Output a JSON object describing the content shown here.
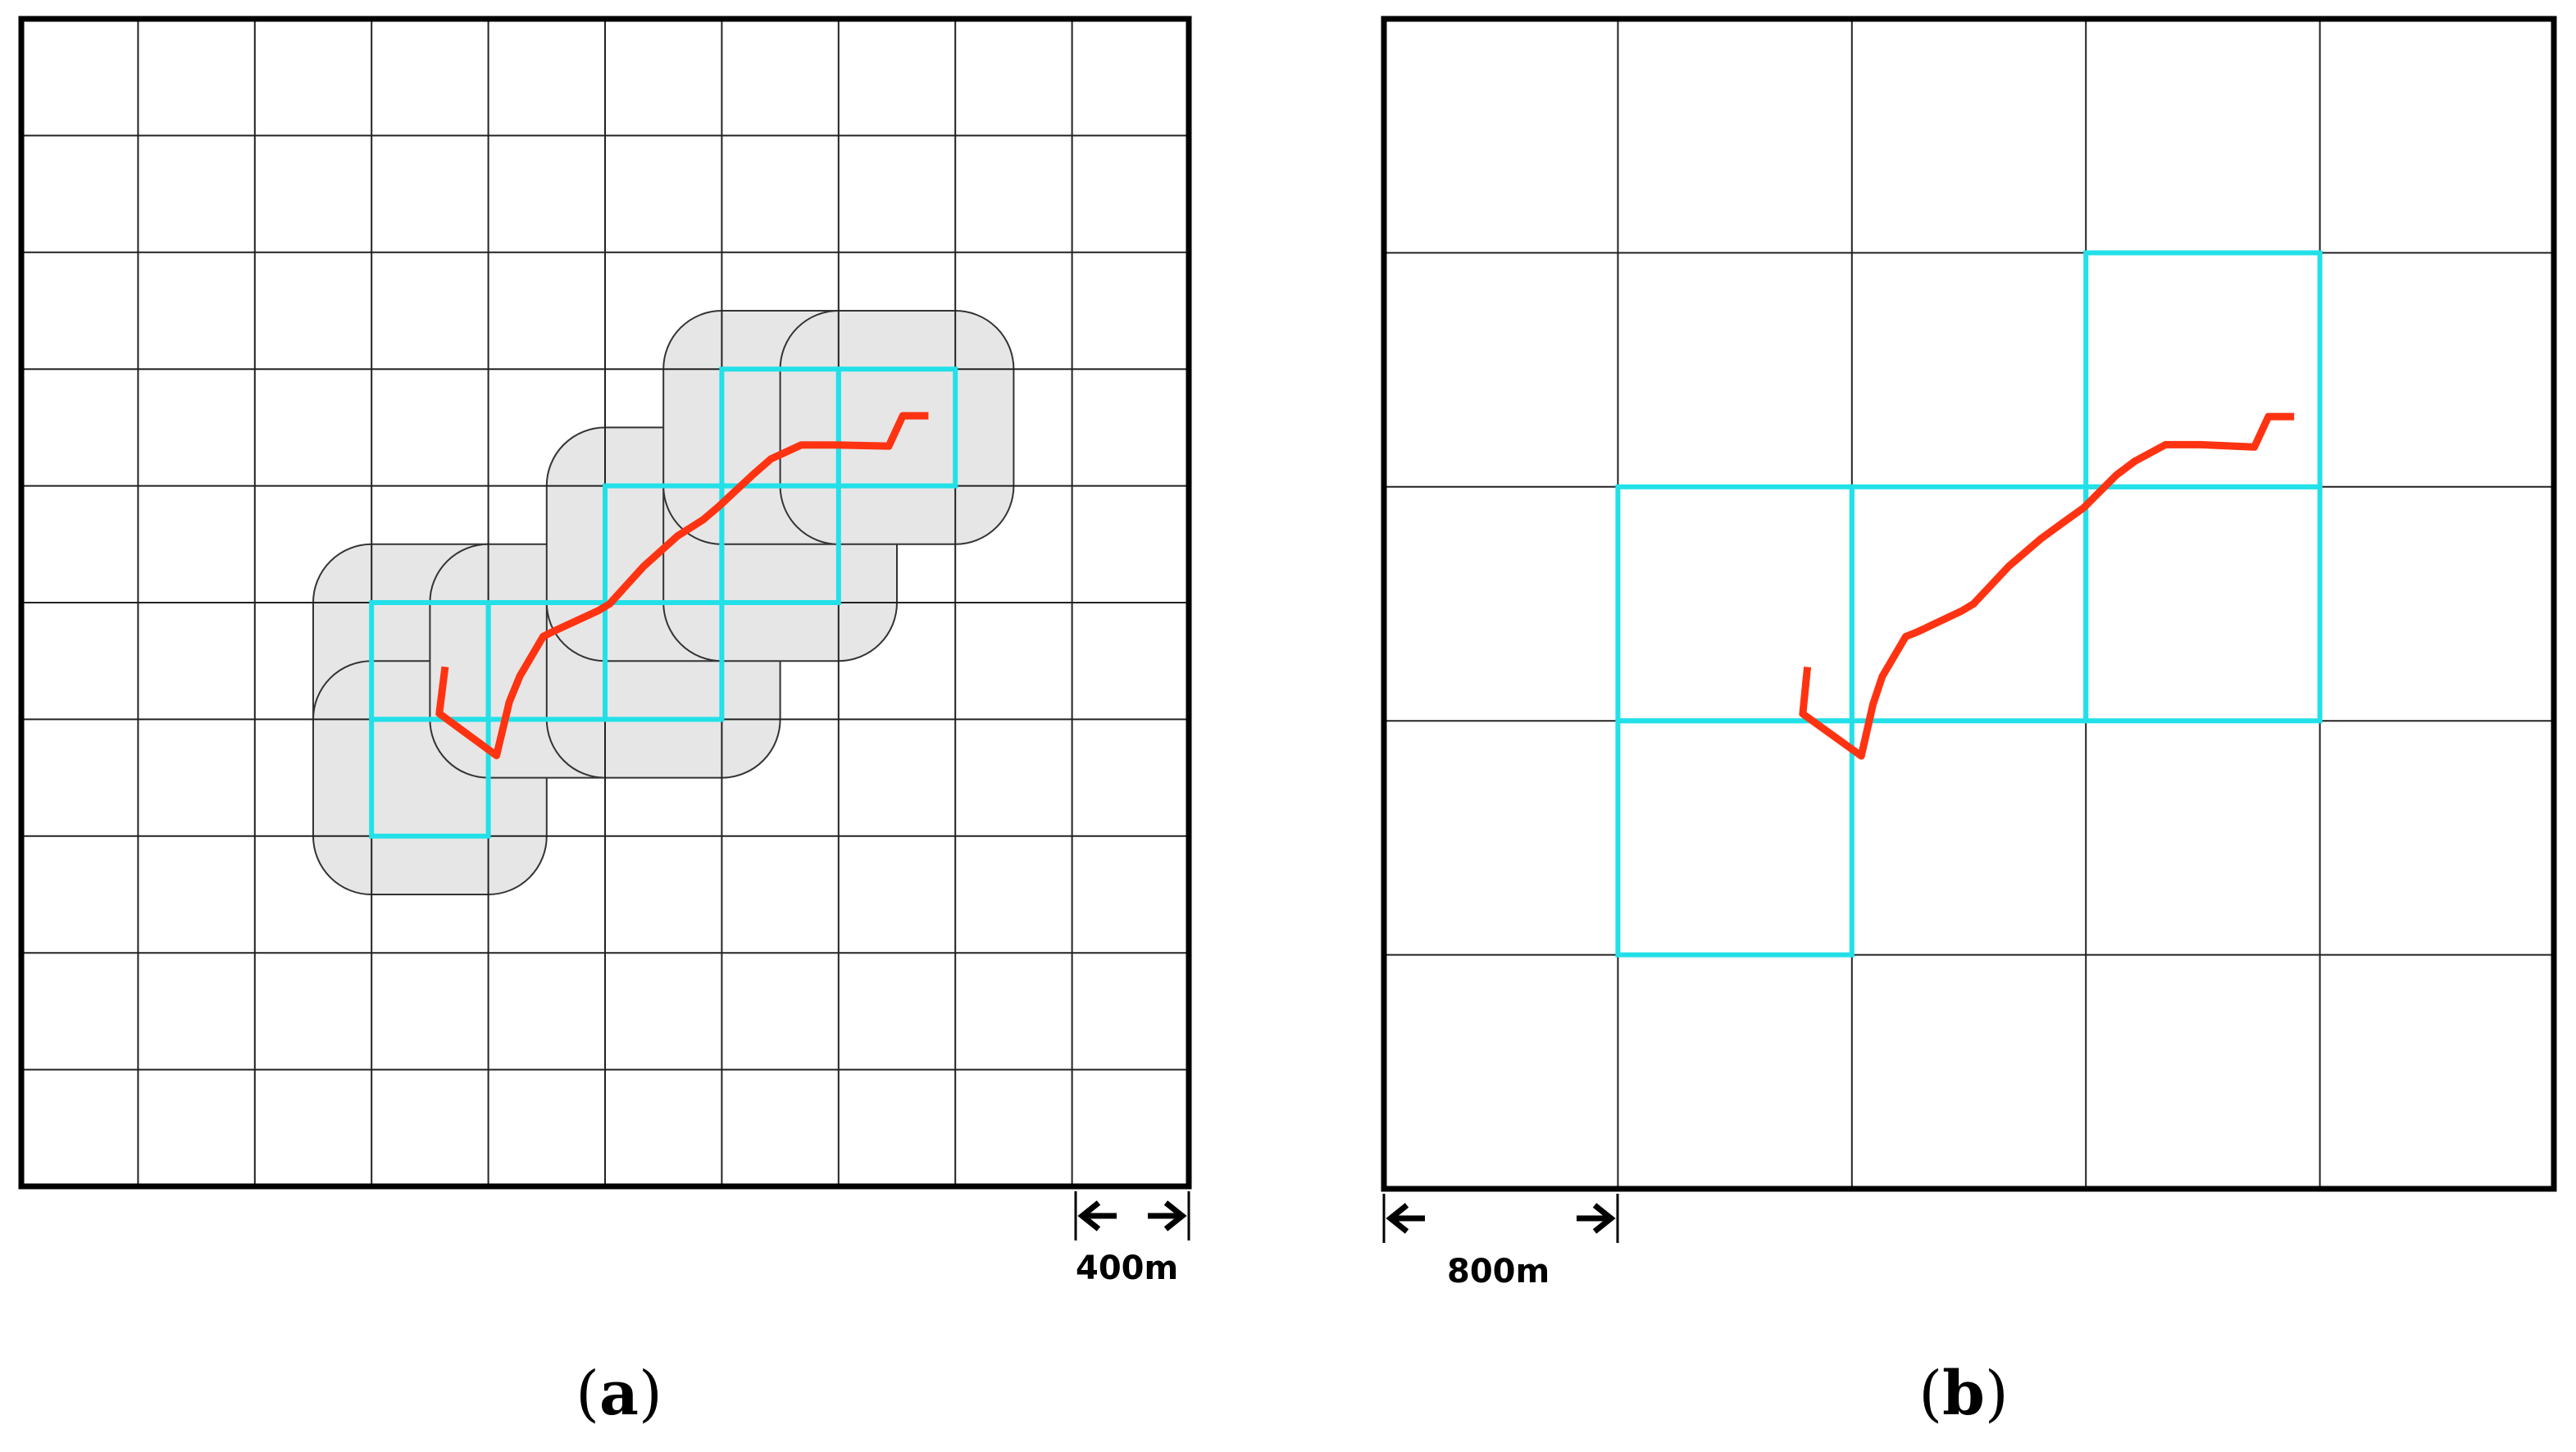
{
  "panels": [
    {
      "id": "a",
      "caption_open": "(",
      "caption_letter": "a",
      "caption_close": ")",
      "grid": {
        "columns": 10,
        "rows": 10
      },
      "scale_label": "400m",
      "cell_size_m": 400,
      "highlighted_cells": [
        [
          3,
          5
        ],
        [
          3,
          6
        ],
        [
          4,
          5
        ],
        [
          5,
          5
        ],
        [
          5,
          4
        ],
        [
          6,
          4
        ],
        [
          6,
          3
        ],
        [
          7,
          3
        ]
      ],
      "buffer_zones_around_cells": [
        [
          3,
          5
        ],
        [
          3,
          6
        ],
        [
          4,
          5
        ],
        [
          5,
          5
        ],
        [
          5,
          4
        ],
        [
          6,
          4
        ],
        [
          6,
          3
        ],
        [
          7,
          3
        ]
      ],
      "track_points": [
        [
          3.63,
          5.55
        ],
        [
          3.58,
          5.95
        ],
        [
          4.07,
          6.31
        ],
        [
          4.18,
          5.85
        ],
        [
          4.27,
          5.63
        ],
        [
          4.47,
          5.29
        ],
        [
          4.55,
          5.25
        ],
        [
          4.94,
          5.07
        ],
        [
          5.04,
          5.01
        ],
        [
          5.33,
          4.69
        ],
        [
          5.62,
          4.43
        ],
        [
          5.84,
          4.29
        ],
        [
          5.97,
          4.18
        ],
        [
          6.26,
          3.91
        ],
        [
          6.42,
          3.77
        ],
        [
          6.68,
          3.65
        ],
        [
          6.98,
          3.65
        ],
        [
          7.43,
          3.66
        ],
        [
          7.55,
          3.4
        ],
        [
          7.77,
          3.4
        ]
      ],
      "track_color": "#ff3311",
      "highlight_color": "#22e0e8",
      "buffer_color": "#e6e6e6"
    },
    {
      "id": "b",
      "caption_open": "(",
      "caption_letter": "b",
      "caption_close": ")",
      "grid": {
        "columns": 5,
        "rows": 5
      },
      "scale_label": "800m",
      "cell_size_m": 800,
      "highlighted_cells": [
        [
          1,
          2
        ],
        [
          1,
          3
        ],
        [
          2,
          2
        ],
        [
          3,
          2
        ],
        [
          3,
          1
        ]
      ],
      "buffer_zones_around_cells": [],
      "track_points": [
        [
          1.81,
          2.77
        ],
        [
          1.79,
          2.97
        ],
        [
          2.04,
          3.15
        ],
        [
          2.09,
          2.93
        ],
        [
          2.13,
          2.81
        ],
        [
          2.23,
          2.64
        ],
        [
          2.28,
          2.62
        ],
        [
          2.47,
          2.53
        ],
        [
          2.52,
          2.5
        ],
        [
          2.67,
          2.34
        ],
        [
          2.81,
          2.22
        ],
        [
          2.92,
          2.14
        ],
        [
          2.99,
          2.09
        ],
        [
          3.13,
          1.95
        ],
        [
          3.21,
          1.89
        ],
        [
          3.34,
          1.82
        ],
        [
          3.49,
          1.82
        ],
        [
          3.72,
          1.83
        ],
        [
          3.78,
          1.7
        ],
        [
          3.89,
          1.7
        ]
      ],
      "track_color": "#ff3311",
      "highlight_color": "#22e0e8",
      "buffer_color": "#e6e6e6"
    }
  ]
}
